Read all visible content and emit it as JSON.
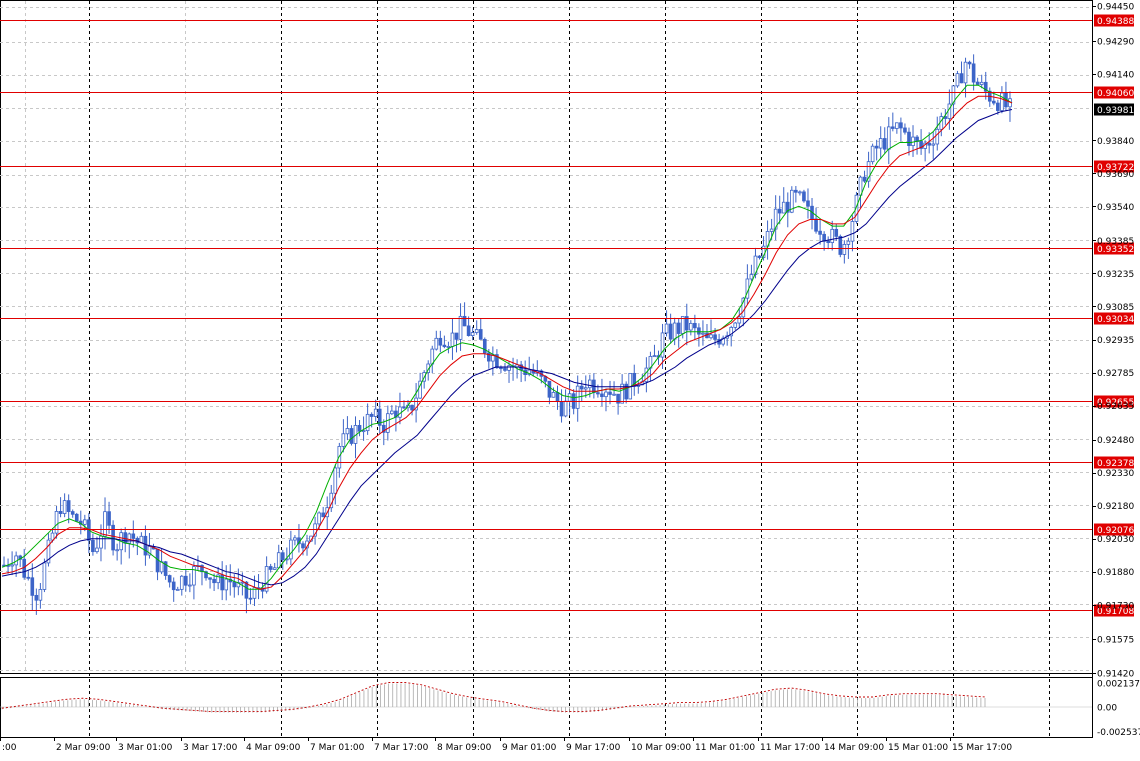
{
  "chart_data": {
    "type": "line",
    "title": "",
    "xlabel": "",
    "ylabel": "",
    "ylim": [
      0.9142,
      0.9445
    ],
    "grid": true,
    "price_axis_labels": [
      "0.94450",
      "0.94290",
      "0.94140",
      "0.93840",
      "0.93690",
      "0.93540",
      "0.93385",
      "0.93235",
      "0.93085",
      "0.92935",
      "0.92785",
      "0.92635",
      "0.92480",
      "0.92330",
      "0.92180",
      "0.92030",
      "0.91880",
      "0.91730",
      "0.91575",
      "0.91420"
    ],
    "time_axis_labels": [
      ":00",
      "2 Mar 09:00",
      "3 Mar 01:00",
      "3 Mar 17:00",
      "4 Mar 09:00",
      "7 Mar 01:00",
      "7 Mar 17:00",
      "8 Mar 09:00",
      "9 Mar 01:00",
      "9 Mar 17:00",
      "10 Mar 09:00",
      "11 Mar 01:00",
      "11 Mar 17:00",
      "14 Mar 09:00",
      "15 Mar 01:00",
      "15 Mar 17:00"
    ],
    "horizontal_levels": [
      "0.94388",
      "0.94060",
      "0.93722",
      "0.93352",
      "0.93034",
      "0.92655",
      "0.92378",
      "0.92076",
      "0.91708"
    ],
    "current_price": "0.93981",
    "price_path": [
      0.9191,
      0.9197,
      0.9186,
      0.9178,
      0.9198,
      0.9219,
      0.9213,
      0.921,
      0.9197,
      0.9211,
      0.92,
      0.9207,
      0.9201,
      0.9198,
      0.919,
      0.9182,
      0.9185,
      0.9188,
      0.919,
      0.9182,
      0.9185,
      0.918,
      0.9175,
      0.9183,
      0.9188,
      0.9195,
      0.92,
      0.9204,
      0.9208,
      0.9222,
      0.9245,
      0.925,
      0.9255,
      0.9258,
      0.9255,
      0.9262,
      0.9258,
      0.927,
      0.9285,
      0.9296,
      0.9294,
      0.93,
      0.9295,
      0.929,
      0.9285,
      0.9283,
      0.928,
      0.928,
      0.9275,
      0.9268,
      0.9263,
      0.9265,
      0.9275,
      0.9273,
      0.9272,
      0.9268,
      0.9273,
      0.9278,
      0.9282,
      0.9295,
      0.9298,
      0.93,
      0.9296,
      0.9292,
      0.9295,
      0.93,
      0.931,
      0.9325,
      0.9335,
      0.935,
      0.9355,
      0.9358,
      0.935,
      0.9345,
      0.934,
      0.9335,
      0.935,
      0.937,
      0.938,
      0.9385,
      0.939,
      0.9385,
      0.938,
      0.9385,
      0.9395,
      0.9405,
      0.942,
      0.941,
      0.9405,
      0.9402,
      0.9398
    ],
    "series": [
      {
        "values": [
          0.919,
          0.9192,
          0.9195,
          0.92,
          0.9205,
          0.921,
          0.9212,
          0.921,
          0.9206,
          0.9204,
          0.9203,
          0.9201,
          0.92,
          0.9197,
          0.9193,
          0.919,
          0.9189,
          0.9189,
          0.9188,
          0.9186,
          0.9185,
          0.9183,
          0.918,
          0.918,
          0.9185,
          0.9192,
          0.9198,
          0.9205,
          0.9215,
          0.9228,
          0.924,
          0.9248,
          0.9252,
          0.9255,
          0.9256,
          0.9258,
          0.9262,
          0.927,
          0.928,
          0.9287,
          0.929,
          0.9292,
          0.9291,
          0.9289,
          0.9286,
          0.9283,
          0.928,
          0.9278,
          0.9275,
          0.9271,
          0.9268,
          0.9267,
          0.9268,
          0.927,
          0.9271,
          0.927,
          0.9272,
          0.9276,
          0.9282,
          0.9289,
          0.9294,
          0.9297,
          0.9297,
          0.9297,
          0.9298,
          0.9302,
          0.931,
          0.9322,
          0.9333,
          0.9345,
          0.9352,
          0.9354,
          0.9352,
          0.9348,
          0.9345,
          0.9345,
          0.9352,
          0.9365,
          0.9374,
          0.938,
          0.9383,
          0.9383,
          0.9384,
          0.9388,
          0.9395,
          0.9403,
          0.9409,
          0.9409,
          0.9406,
          0.9404,
          0.9401
        ]
      },
      {
        "values": [
          0.9187,
          0.9188,
          0.919,
          0.9194,
          0.9199,
          0.9205,
          0.9208,
          0.9208,
          0.9207,
          0.9205,
          0.9204,
          0.9203,
          0.9202,
          0.92,
          0.9198,
          0.9195,
          0.9193,
          0.9191,
          0.919,
          0.9188,
          0.9186,
          0.9185,
          0.9182,
          0.918,
          0.9181,
          0.9186,
          0.9192,
          0.9198,
          0.9206,
          0.9215,
          0.9226,
          0.9235,
          0.9242,
          0.9248,
          0.9252,
          0.9255,
          0.9258,
          0.9263,
          0.927,
          0.9277,
          0.9282,
          0.9286,
          0.9287,
          0.9287,
          0.9286,
          0.9284,
          0.9282,
          0.928,
          0.9278,
          0.9275,
          0.9272,
          0.927,
          0.927,
          0.927,
          0.9271,
          0.9271,
          0.9272,
          0.9274,
          0.9278,
          0.9284,
          0.9288,
          0.9292,
          0.9294,
          0.9296,
          0.9298,
          0.9301,
          0.9306,
          0.9314,
          0.9323,
          0.9333,
          0.9341,
          0.9346,
          0.9348,
          0.9348,
          0.9346,
          0.9346,
          0.9349,
          0.9357,
          0.9365,
          0.9372,
          0.9377,
          0.9379,
          0.9381,
          0.9385,
          0.939,
          0.9396,
          0.9401,
          0.9404,
          0.9404,
          0.9403,
          0.9401
        ]
      },
      {
        "values": [
          0.9186,
          0.9187,
          0.9188,
          0.919,
          0.9193,
          0.9197,
          0.92,
          0.9202,
          0.9203,
          0.9203,
          0.9203,
          0.9202,
          0.9202,
          0.92,
          0.9199,
          0.9197,
          0.9196,
          0.9194,
          0.9192,
          0.919,
          0.9188,
          0.9187,
          0.9185,
          0.9183,
          0.9182,
          0.9183,
          0.9186,
          0.919,
          0.9196,
          0.9204,
          0.9212,
          0.922,
          0.9227,
          0.9232,
          0.9237,
          0.9242,
          0.9246,
          0.925,
          0.9256,
          0.9262,
          0.9268,
          0.9273,
          0.9277,
          0.9279,
          0.9281,
          0.9281,
          0.9281,
          0.928,
          0.9279,
          0.9278,
          0.9276,
          0.9274,
          0.9273,
          0.9272,
          0.9272,
          0.9272,
          0.9272,
          0.9273,
          0.9275,
          0.9278,
          0.9281,
          0.9285,
          0.9288,
          0.9291,
          0.9293,
          0.9296,
          0.93,
          0.9305,
          0.9311,
          0.9318,
          0.9325,
          0.9331,
          0.9335,
          0.9338,
          0.9339,
          0.934,
          0.9342,
          0.9346,
          0.9352,
          0.9358,
          0.9363,
          0.9367,
          0.9371,
          0.9375,
          0.938,
          0.9385,
          0.9389,
          0.9393,
          0.9395,
          0.9397,
          0.9398
        ]
      }
    ],
    "oscillator": {
      "axis_labels": [
        "0.002137",
        "0.00",
        "-0.002537"
      ],
      "ylim": [
        -0.0025,
        0.0025
      ],
      "values": [
        -0.0002,
        0.0,
        0.0002,
        0.0004,
        0.0006,
        0.0007,
        0.0006,
        0.0004,
        0.0002,
        0.0,
        -0.0002,
        -0.0003,
        -0.0004,
        -0.0005,
        -0.0005,
        -0.0005,
        -0.0005,
        -0.0004,
        -0.0003,
        -0.0001,
        0.0002,
        0.0006,
        0.0012,
        0.0018,
        0.0021,
        0.0021,
        0.0019,
        0.0015,
        0.0011,
        0.0008,
        0.0006,
        0.0004,
        0.0001,
        -0.0002,
        -0.0004,
        -0.0005,
        -0.0005,
        -0.0004,
        -0.0002,
        0.0,
        0.0001,
        0.0002,
        0.0003,
        0.0003,
        0.0004,
        0.0006,
        0.0009,
        0.0012,
        0.0015,
        0.0016,
        0.0014,
        0.0011,
        0.0009,
        0.0008,
        0.0008,
        0.001,
        0.0011,
        0.0011,
        0.0011,
        0.001,
        0.0009,
        0.0008
      ]
    }
  },
  "colors": {
    "background": "#ffffff",
    "grid": "#c8c8c8",
    "candles": "#3c64c8",
    "level_line": "#e00000",
    "level_label_bg": "#e00000",
    "current_label_bg": "#000000",
    "ma_fast": "#00b000",
    "ma_mid": "#e00000",
    "ma_slow": "#00008b",
    "oscillator_bars": "#a9a9a9",
    "oscillator_line": "#c00000"
  }
}
